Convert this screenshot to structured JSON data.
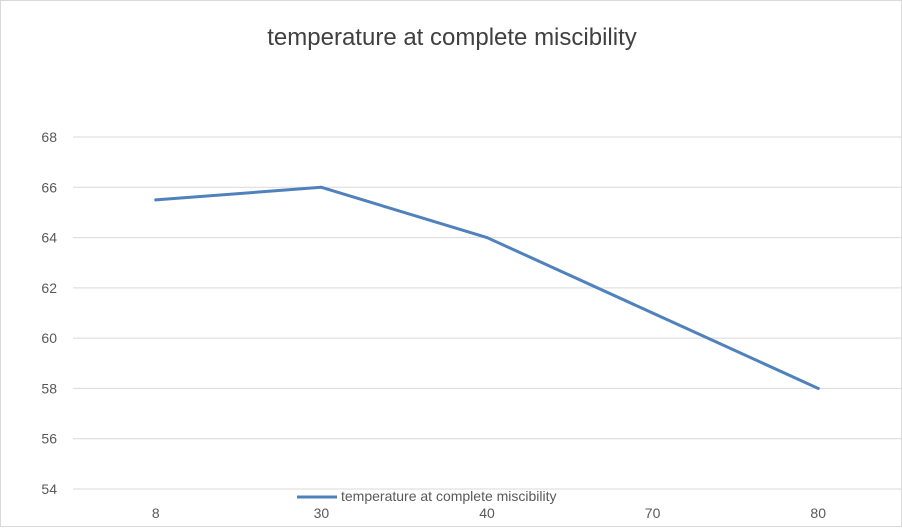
{
  "chart_data": {
    "type": "line",
    "title": "temperature at complete miscibility",
    "xlabel": "",
    "ylabel": "",
    "categories": [
      "8",
      "30",
      "40",
      "70",
      "80"
    ],
    "series": [
      {
        "name": "temperature at complete miscibility",
        "values": [
          65.5,
          66,
          64,
          61,
          58
        ],
        "color": "#4f81bd"
      }
    ],
    "ylim": [
      54,
      68
    ],
    "yticks": [
      54,
      56,
      58,
      60,
      62,
      64,
      66,
      68
    ],
    "grid": true,
    "legend": "bottom",
    "colors": {
      "gridline": "#d9d9d9",
      "text": "#595959",
      "title": "#404040"
    }
  }
}
